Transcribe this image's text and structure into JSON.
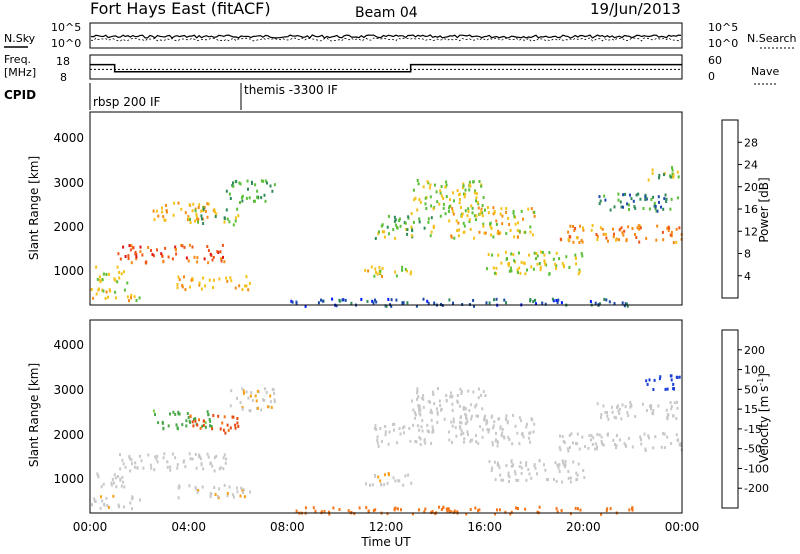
{
  "header": {
    "station": "Fort Hays East (fitACF)",
    "beam": "Beam 04",
    "date": "19/Jun/2013"
  },
  "noise_panel": {
    "left_label": "N.Sky",
    "right_label": "N.Search",
    "left_ticks": [
      "10^5",
      "10^0"
    ],
    "right_ticks": [
      "10^5",
      "10^0"
    ]
  },
  "freq_panel": {
    "left_label_1": "Freq.",
    "left_label_2": "[MHz]",
    "right_label": "Nave",
    "left_ticks": [
      "18",
      "8"
    ],
    "right_ticks": [
      "60",
      "0"
    ]
  },
  "cpid_panel": {
    "label": "CPID",
    "programs": [
      {
        "name": "rbsp 200 IF",
        "start_hour": 0
      },
      {
        "name": "themis -3300 IF",
        "start_hour": 6
      }
    ]
  },
  "power_panel": {
    "ylabel": "Slant Range [km]",
    "yticks": [
      "1000",
      "2000",
      "3000",
      "4000"
    ],
    "colorbar_label": "Power [dB]",
    "colorbar_ticks": [
      "4",
      "8",
      "12",
      "16",
      "20",
      "24",
      "28"
    ],
    "colors": [
      "#0019ff",
      "#1e4da9",
      "#2f8a5a",
      "#5bbf3a",
      "#f4c21b",
      "#f58a14",
      "#f2551a",
      "#e01313"
    ]
  },
  "velocity_panel": {
    "ylabel": "Slant Range [km]",
    "yticks": [
      "1000",
      "2000",
      "3000",
      "4000"
    ],
    "colorbar_label": "Velocity [m s",
    "colorbar_label_sup": "-1",
    "colorbar_label_end": "]",
    "colorbar_ticks": [
      "200",
      "100",
      "50",
      "15",
      "-15",
      "-50",
      "-100",
      "-200"
    ],
    "colors": [
      "#1a3fd6",
      "#3a6f5a",
      "#4aa84a",
      "#7ad24a",
      "#c8c8c8",
      "#f5a21a",
      "#f5761a",
      "#e84a14",
      "#d81010"
    ]
  },
  "xaxis": {
    "ticks": [
      "00:00",
      "04:00",
      "08:00",
      "12:00",
      "16:00",
      "20:00",
      "00:00"
    ],
    "label": "Time UT"
  },
  "chart_data": {
    "type": "heatmap",
    "title": "Fort Hays East (fitACF)",
    "xlabel": "Time UT",
    "ylabel": "Slant Range [km]",
    "xlim_hours": [
      0,
      24
    ],
    "ylim_km": [
      180,
      4500
    ],
    "power_range_db": [
      0,
      30
    ],
    "velocity_range_ms": [
      -250,
      250
    ],
    "freq_mhz": [
      {
        "start_hour": 0,
        "end_hour": 1,
        "value": 14
      },
      {
        "start_hour": 1,
        "end_hour": 13,
        "value": 11
      },
      {
        "start_hour": 13,
        "end_hour": 24,
        "value": 14
      }
    ],
    "nave_level": 24,
    "echo_regions": [
      {
        "t0": 0.0,
        "t1": 2.0,
        "r0": 300,
        "r1": 600,
        "power": 18,
        "velocity": -10
      },
      {
        "t0": 0.2,
        "t1": 1.5,
        "r0": 700,
        "r1": 1100,
        "power": 16,
        "velocity": -5
      },
      {
        "t0": 1.0,
        "t1": 5.5,
        "r0": 1150,
        "r1": 1550,
        "power": 26,
        "velocity": -5
      },
      {
        "t0": 2.5,
        "t1": 5.0,
        "r0": 2100,
        "r1": 2500,
        "power": 20,
        "velocity": 40
      },
      {
        "t0": 4.0,
        "t1": 6.0,
        "r0": 2000,
        "r1": 2400,
        "power": 14,
        "velocity": -80
      },
      {
        "t0": 5.5,
        "t1": 7.5,
        "r0": 2500,
        "r1": 3000,
        "power": 12,
        "velocity": -10
      },
      {
        "t0": 3.5,
        "t1": 6.5,
        "r0": 550,
        "r1": 850,
        "power": 20,
        "velocity": -10
      },
      {
        "t0": 11.0,
        "t1": 13.0,
        "r0": 800,
        "r1": 1100,
        "power": 18,
        "velocity": -10
      },
      {
        "t0": 11.5,
        "t1": 14.0,
        "r0": 1700,
        "r1": 2200,
        "power": 14,
        "velocity": -5
      },
      {
        "t0": 13.0,
        "t1": 16.0,
        "r0": 2200,
        "r1": 3000,
        "power": 16,
        "velocity": -5
      },
      {
        "t0": 14.5,
        "t1": 18.0,
        "r0": 1700,
        "r1": 2400,
        "power": 18,
        "velocity": -5
      },
      {
        "t0": 16.0,
        "t1": 20.0,
        "r0": 900,
        "r1": 1400,
        "power": 16,
        "velocity": -5
      },
      {
        "t0": 19.0,
        "t1": 24.0,
        "r0": 1600,
        "r1": 2000,
        "power": 22,
        "velocity": 5
      },
      {
        "t0": 20.5,
        "t1": 24.0,
        "r0": 2300,
        "r1": 2700,
        "power": 10,
        "velocity": -5
      },
      {
        "t0": 22.5,
        "t1": 24.0,
        "r0": 2950,
        "r1": 3300,
        "power": 14,
        "velocity": 180
      },
      {
        "t0": 8.0,
        "t1": 22.0,
        "r0": 180,
        "r1": 350,
        "power": 6,
        "velocity": -60
      }
    ]
  }
}
